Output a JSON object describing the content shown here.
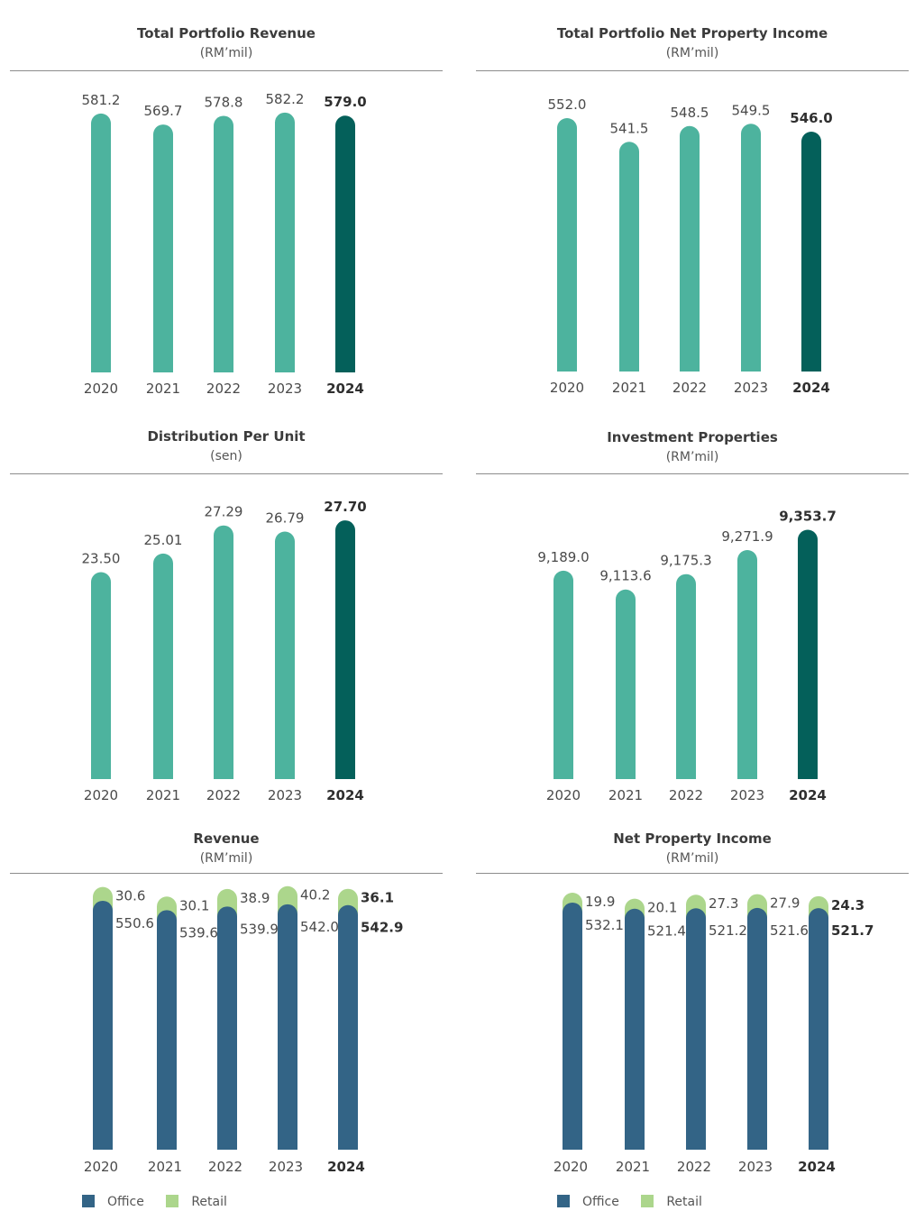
{
  "colors": {
    "bar": "#4db39e",
    "bar_highlight": "#04605a",
    "office": "#336486",
    "retail": "#acd68c"
  },
  "legend": {
    "office": "Office",
    "retail": "Retail"
  },
  "chart_data": [
    {
      "type": "bar",
      "title": "Total Portfolio Revenue",
      "unit": "(RM’mil)",
      "categories": [
        "2020",
        "2021",
        "2022",
        "2023",
        "2024"
      ],
      "values": [
        581.2,
        569.7,
        578.8,
        582.2,
        579.0
      ],
      "labels": [
        "581.2",
        "569.7",
        "578.8",
        "582.2",
        "579.0"
      ],
      "highlight": "2024"
    },
    {
      "type": "bar",
      "title": "Total Portfolio Net Property Income",
      "unit": "(RM’mil)",
      "categories": [
        "2020",
        "2021",
        "2022",
        "2023",
        "2024"
      ],
      "values": [
        552.0,
        541.5,
        548.5,
        549.5,
        546.0
      ],
      "labels": [
        "552.0",
        "541.5",
        "548.5",
        "549.5",
        "546.0"
      ],
      "highlight": "2024"
    },
    {
      "type": "bar",
      "title": "Distribution Per Unit",
      "unit": "(sen)",
      "categories": [
        "2020",
        "2021",
        "2022",
        "2023",
        "2024"
      ],
      "values": [
        23.5,
        25.01,
        27.29,
        26.79,
        27.7
      ],
      "labels": [
        "23.50",
        "25.01",
        "27.29",
        "26.79",
        "27.70"
      ],
      "highlight": "2024"
    },
    {
      "type": "bar",
      "title": "Investment Properties",
      "unit": "(RM’mil)",
      "categories": [
        "2020",
        "2021",
        "2022",
        "2023",
        "2024"
      ],
      "values": [
        9189.0,
        9113.6,
        9175.3,
        9271.9,
        9353.7
      ],
      "labels": [
        "9,189.0",
        "9,113.6",
        "9,175.3",
        "9,271.9",
        "9,353.7"
      ],
      "highlight": "2024"
    },
    {
      "type": "bar",
      "stacked": true,
      "title": "Revenue",
      "unit": "(RM’mil)",
      "categories": [
        "2020",
        "2021",
        "2022",
        "2023",
        "2024"
      ],
      "series": [
        {
          "name": "Office",
          "values": [
            550.6,
            539.6,
            539.9,
            542.0,
            542.9
          ],
          "labels": [
            "550.6",
            "539.6",
            "539.9",
            "542.0",
            "542.9"
          ]
        },
        {
          "name": "Retail",
          "values": [
            30.6,
            30.1,
            38.9,
            40.2,
            36.1
          ],
          "labels": [
            "30.6",
            "30.1",
            "38.9",
            "40.2",
            "36.1"
          ]
        }
      ],
      "highlight": "2024"
    },
    {
      "type": "bar",
      "stacked": true,
      "title": "Net Property Income",
      "unit": "(RM’mil)",
      "categories": [
        "2020",
        "2021",
        "2022",
        "2023",
        "2024"
      ],
      "series": [
        {
          "name": "Office",
          "values": [
            532.1,
            521.4,
            521.2,
            521.6,
            521.7
          ],
          "labels": [
            "532.1",
            "521.4",
            "521.2",
            "521.6",
            "521.7"
          ]
        },
        {
          "name": "Retail",
          "values": [
            19.9,
            20.1,
            27.3,
            27.9,
            24.3
          ],
          "labels": [
            "19.9",
            "20.1",
            "27.3",
            "27.9",
            "24.3"
          ]
        }
      ],
      "highlight": "2024"
    }
  ]
}
